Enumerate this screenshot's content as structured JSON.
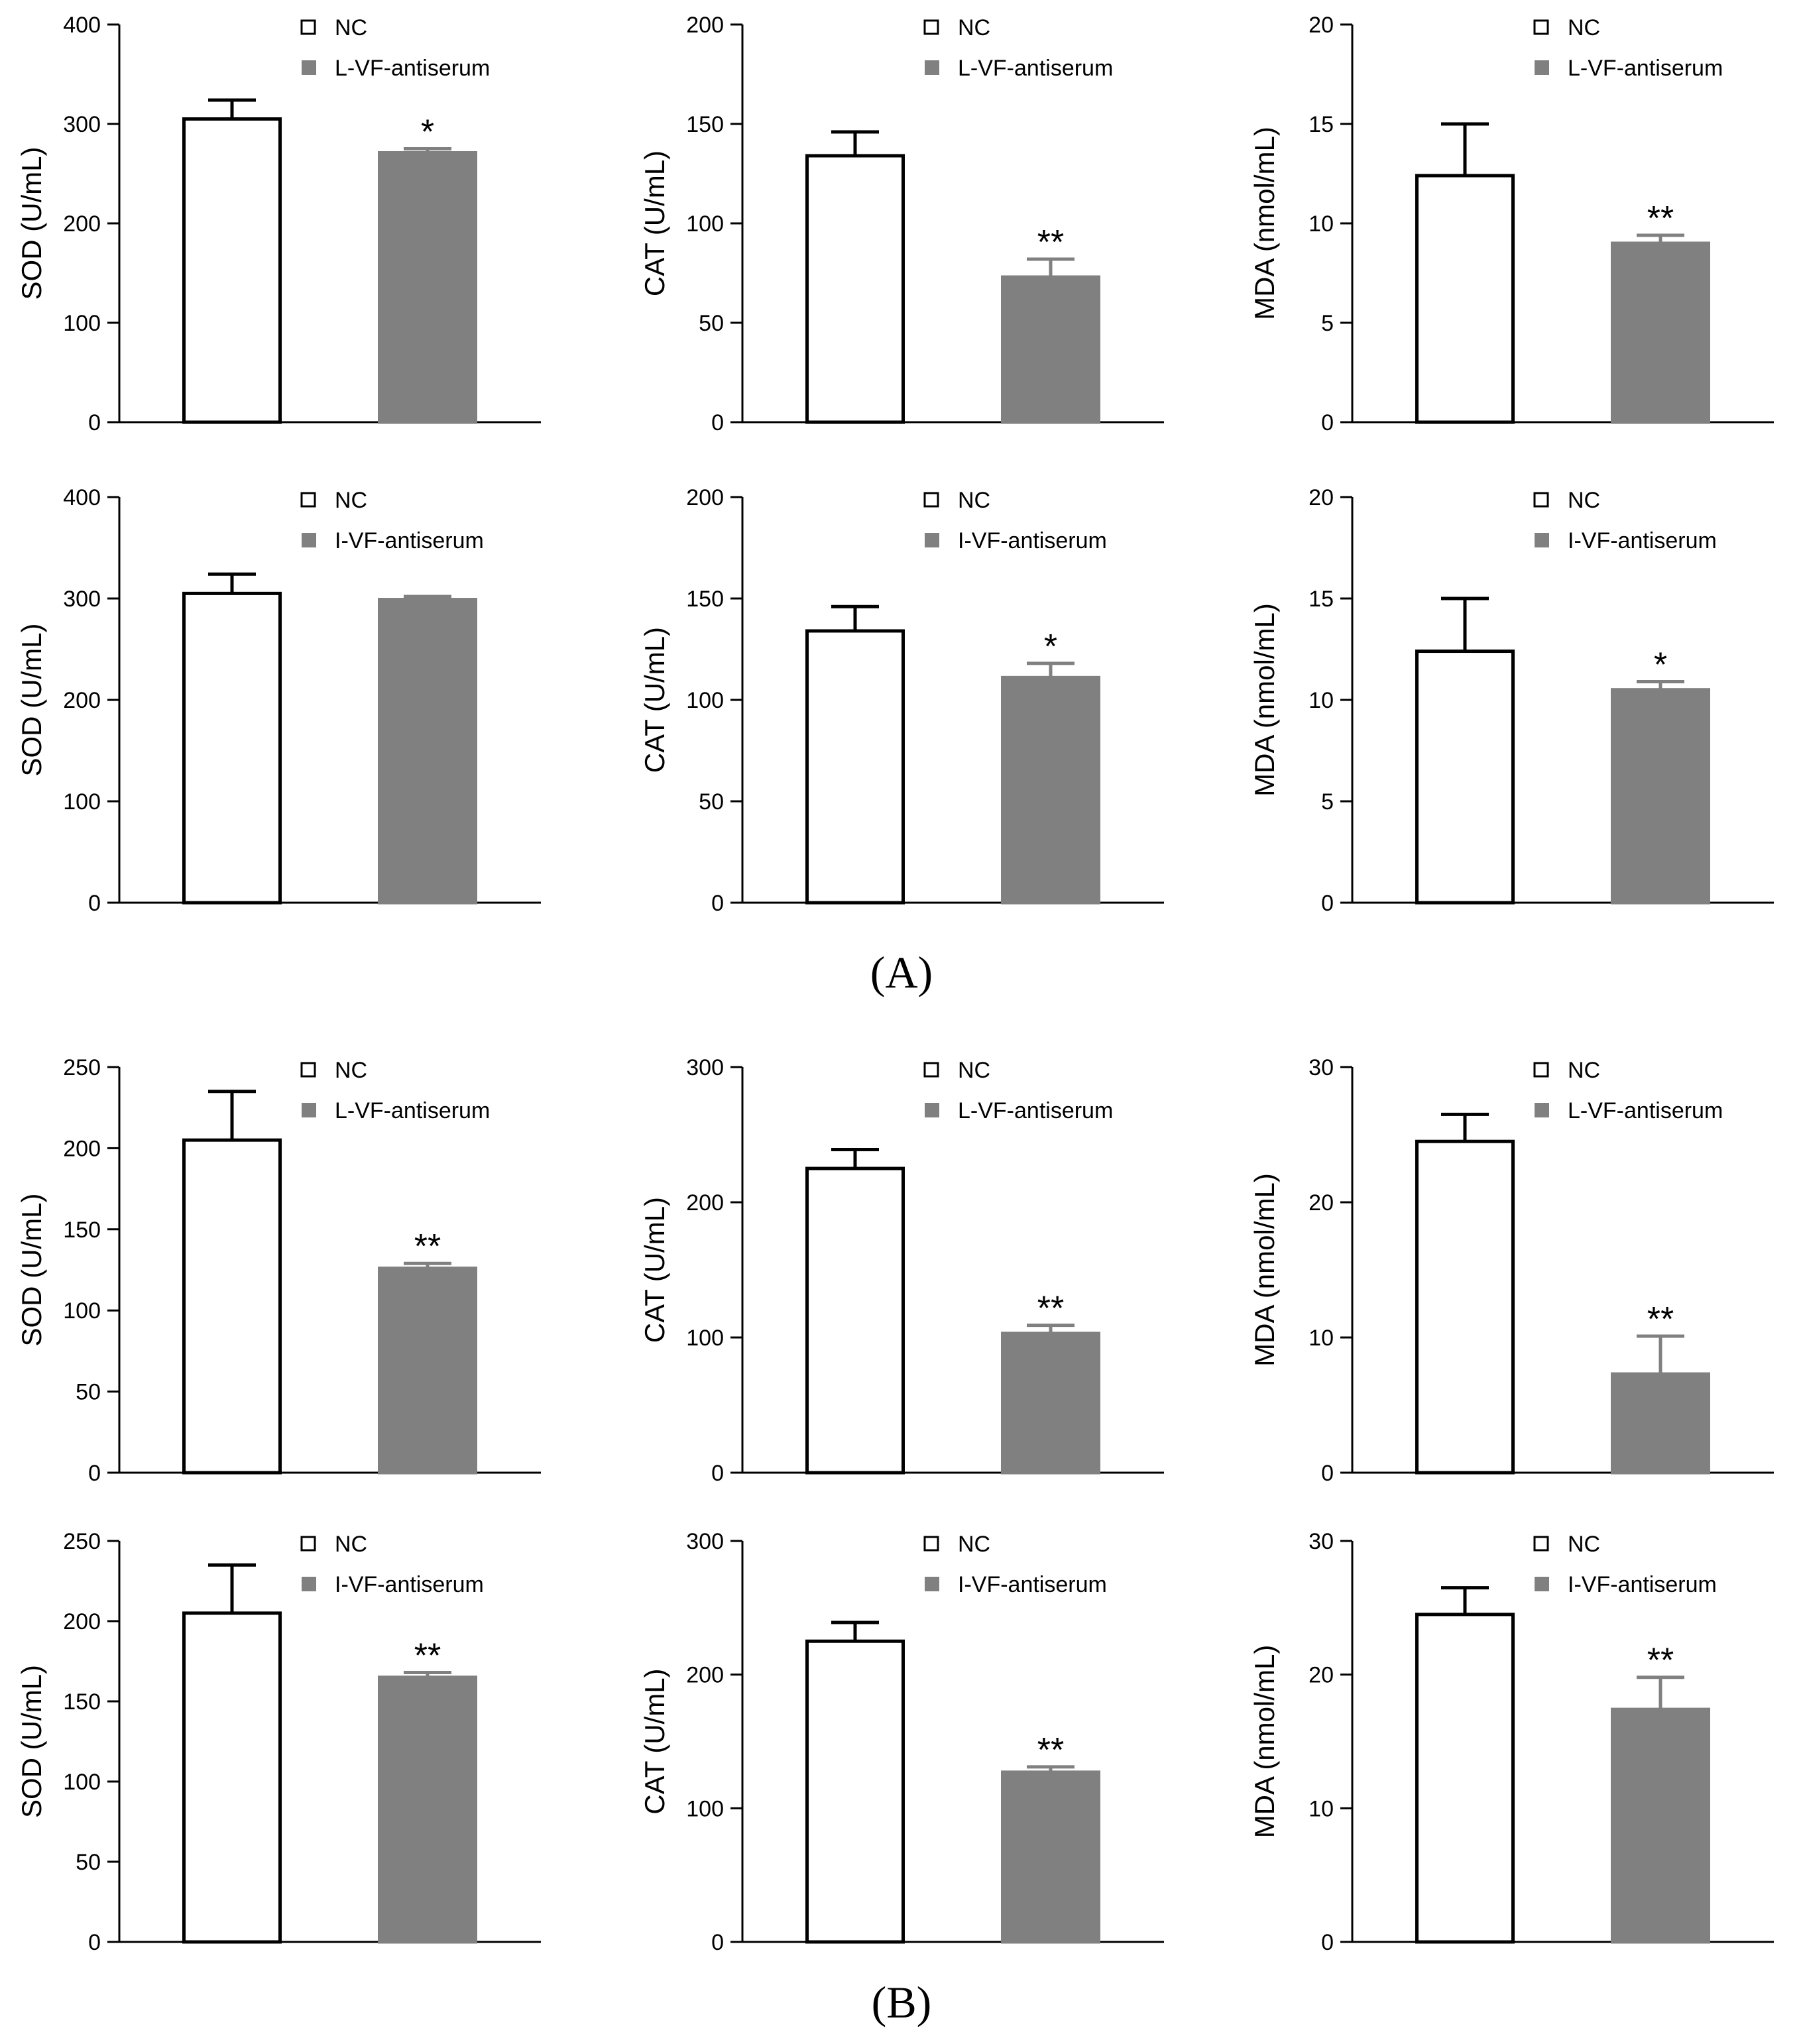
{
  "figure": {
    "panel_labels": [
      "(A)",
      "(B)"
    ]
  },
  "colors": {
    "nc": "#ffffff",
    "antiserum": "#808080",
    "axis": "#000000"
  },
  "chart_data": [
    {
      "panel": "A",
      "type": "bar",
      "ylabel": "SOD (U/mL)",
      "ylim": [
        0,
        400
      ],
      "ticks": [
        0,
        100,
        200,
        300,
        400
      ],
      "legend": [
        "NC",
        "L-VF-antiserum"
      ],
      "categories": [
        "NC",
        "L-VF-antiserum"
      ],
      "values": [
        305,
        271
      ],
      "errors": [
        19,
        4
      ],
      "significance": [
        "",
        "*"
      ]
    },
    {
      "panel": "A",
      "type": "bar",
      "ylabel": "CAT (U/mL)",
      "ylim": [
        0,
        200
      ],
      "ticks": [
        0,
        50,
        100,
        150,
        200
      ],
      "legend": [
        "NC",
        "L-VF-antiserum"
      ],
      "categories": [
        "NC",
        "L-VF-antiserum"
      ],
      "values": [
        134,
        73
      ],
      "errors": [
        12,
        9
      ],
      "significance": [
        "",
        "**"
      ]
    },
    {
      "panel": "A",
      "type": "bar",
      "ylabel": "MDA (nmol/mL)",
      "ylim": [
        0,
        20
      ],
      "ticks": [
        0,
        5,
        10,
        15,
        20
      ],
      "legend": [
        "NC",
        "L-VF-antiserum"
      ],
      "categories": [
        "NC",
        "L-VF-antiserum"
      ],
      "values": [
        12.4,
        9.0
      ],
      "errors": [
        2.6,
        0.4
      ],
      "significance": [
        "",
        "**"
      ]
    },
    {
      "panel": "A",
      "type": "bar",
      "ylabel": "SOD (U/mL)",
      "ylim": [
        0,
        400
      ],
      "ticks": [
        0,
        100,
        200,
        300,
        400
      ],
      "legend": [
        "NC",
        "I-VF-antiserum"
      ],
      "categories": [
        "NC",
        "I-VF-antiserum"
      ],
      "values": [
        305,
        299
      ],
      "errors": [
        19,
        3
      ],
      "significance": [
        "",
        ""
      ]
    },
    {
      "panel": "A",
      "type": "bar",
      "ylabel": "CAT (U/mL)",
      "ylim": [
        0,
        200
      ],
      "ticks": [
        0,
        50,
        100,
        150,
        200
      ],
      "legend": [
        "NC",
        "I-VF-antiserum"
      ],
      "categories": [
        "NC",
        "I-VF-antiserum"
      ],
      "values": [
        134,
        111
      ],
      "errors": [
        12,
        7
      ],
      "significance": [
        "",
        "*"
      ]
    },
    {
      "panel": "A",
      "type": "bar",
      "ylabel": "MDA (nmol/mL)",
      "ylim": [
        0,
        20
      ],
      "ticks": [
        0,
        5,
        10,
        15,
        20
      ],
      "legend": [
        "NC",
        "I-VF-antiserum"
      ],
      "categories": [
        "NC",
        "I-VF-antiserum"
      ],
      "values": [
        12.4,
        10.5
      ],
      "errors": [
        2.6,
        0.4
      ],
      "significance": [
        "",
        "*"
      ]
    },
    {
      "panel": "B",
      "type": "bar",
      "ylabel": "SOD (U/mL)",
      "ylim": [
        0,
        250
      ],
      "ticks": [
        0,
        50,
        100,
        150,
        200,
        250
      ],
      "legend": [
        "NC",
        "L-VF-antiserum"
      ],
      "categories": [
        "NC",
        "L-VF-antiserum"
      ],
      "values": [
        205,
        126
      ],
      "errors": [
        30,
        3
      ],
      "significance": [
        "",
        "**"
      ]
    },
    {
      "panel": "B",
      "type": "bar",
      "ylabel": "CAT (U/mL)",
      "ylim": [
        0,
        300
      ],
      "ticks": [
        0,
        100,
        200,
        300
      ],
      "legend": [
        "NC",
        "L-VF-antiserum"
      ],
      "categories": [
        "NC",
        "L-VF-antiserum"
      ],
      "values": [
        225,
        103
      ],
      "errors": [
        14,
        6
      ],
      "significance": [
        "",
        "**"
      ]
    },
    {
      "panel": "B",
      "type": "bar",
      "ylabel": "MDA (nmol/mL)",
      "ylim": [
        0,
        30
      ],
      "ticks": [
        0,
        10,
        20,
        30
      ],
      "legend": [
        "NC",
        "L-VF-antiserum"
      ],
      "categories": [
        "NC",
        "L-VF-antiserum"
      ],
      "values": [
        24.5,
        7.3
      ],
      "errors": [
        2.0,
        2.8
      ],
      "significance": [
        "",
        "**"
      ]
    },
    {
      "panel": "B",
      "type": "bar",
      "ylabel": "SOD (U/mL)",
      "ylim": [
        0,
        250
      ],
      "ticks": [
        0,
        50,
        100,
        150,
        200,
        250
      ],
      "legend": [
        "NC",
        "I-VF-antiserum"
      ],
      "categories": [
        "NC",
        "I-VF-antiserum"
      ],
      "values": [
        205,
        165
      ],
      "errors": [
        30,
        3
      ],
      "significance": [
        "",
        "**"
      ]
    },
    {
      "panel": "B",
      "type": "bar",
      "ylabel": "CAT (U/mL)",
      "ylim": [
        0,
        300
      ],
      "ticks": [
        0,
        100,
        200,
        300
      ],
      "legend": [
        "NC",
        "I-VF-antiserum"
      ],
      "categories": [
        "NC",
        "I-VF-antiserum"
      ],
      "values": [
        225,
        127
      ],
      "errors": [
        14,
        4
      ],
      "significance": [
        "",
        "**"
      ]
    },
    {
      "panel": "B",
      "type": "bar",
      "ylabel": "MDA (nmol/mL)",
      "ylim": [
        0,
        30
      ],
      "ticks": [
        0,
        10,
        20,
        30
      ],
      "legend": [
        "NC",
        "I-VF-antiserum"
      ],
      "categories": [
        "NC",
        "I-VF-antiserum"
      ],
      "values": [
        24.5,
        17.4
      ],
      "errors": [
        2.0,
        2.4
      ],
      "significance": [
        "",
        "**"
      ]
    }
  ]
}
